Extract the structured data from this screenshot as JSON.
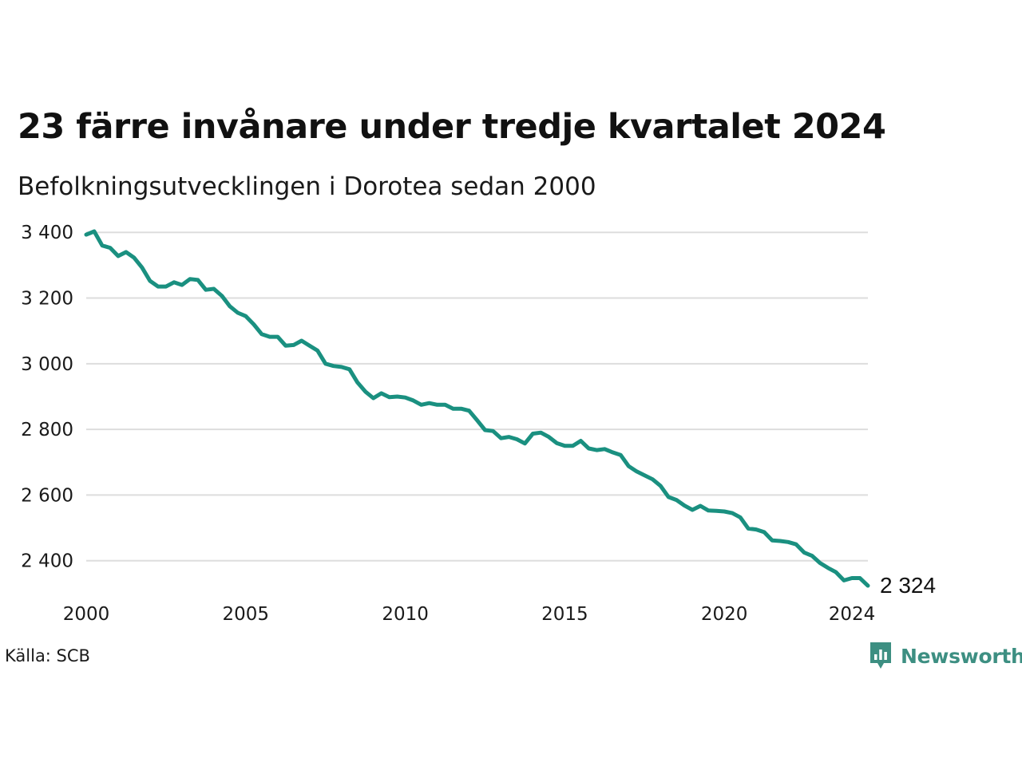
{
  "title": "23 färre invånare under tredje kvartalet 2024",
  "subtitle": "Befolkningsutvecklingen i Dorotea sedan 2000",
  "source": "Källa: SCB",
  "brand": {
    "name": "Newsworthy",
    "icon": "newsworthy-logo-icon",
    "color": "#3d8f82"
  },
  "colors": {
    "line": "#1a9080",
    "grid": "#dddddd"
  },
  "chart_data": {
    "type": "line",
    "title": "23 färre invånare under tredje kvartalet 2024",
    "subtitle": "Befolkningsutvecklingen i Dorotea sedan 2000",
    "xlabel": "",
    "ylabel": "",
    "xlim": [
      2000.0,
      2024.5
    ],
    "ylim": [
      2290,
      3420
    ],
    "grid": "horizontal",
    "legend": "none",
    "x_ticks": [
      2000,
      2005,
      2010,
      2015,
      2020,
      2024
    ],
    "x_tick_labels": [
      "2000",
      "2005",
      "2010",
      "2015",
      "2020",
      "2024"
    ],
    "y_ticks": [
      2400,
      2600,
      2800,
      3000,
      3200,
      3400
    ],
    "y_tick_labels": [
      "2 400",
      "2 600",
      "2 800",
      "3 000",
      "3 200",
      "3 400"
    ],
    "end_label": "2 324",
    "series": [
      {
        "x": [
          2000.0,
          2000.25,
          2000.5,
          2000.75,
          2001.0,
          2001.25,
          2001.5,
          2001.75,
          2002.0,
          2002.25,
          2002.5,
          2002.75,
          2003.0,
          2003.25,
          2003.5,
          2003.75,
          2004.0,
          2004.25,
          2004.5,
          2004.75,
          2005.0,
          2005.25,
          2005.5,
          2005.75,
          2006.0,
          2006.25,
          2006.5,
          2006.75,
          2007.0,
          2007.25,
          2007.5,
          2007.75,
          2008.0,
          2008.25,
          2008.5,
          2008.75,
          2009.0,
          2009.25,
          2009.5,
          2009.75,
          2010.0,
          2010.25,
          2010.5,
          2010.75,
          2011.0,
          2011.25,
          2011.5,
          2011.75,
          2012.0,
          2012.25,
          2012.5,
          2012.75,
          2013.0,
          2013.25,
          2013.5,
          2013.75,
          2014.0,
          2014.25,
          2014.5,
          2014.75,
          2015.0,
          2015.25,
          2015.5,
          2015.75,
          2016.0,
          2016.25,
          2016.5,
          2016.75,
          2017.0,
          2017.25,
          2017.5,
          2017.75,
          2018.0,
          2018.25,
          2018.5,
          2018.75,
          2019.0,
          2019.25,
          2019.5,
          2019.75,
          2020.0,
          2020.25,
          2020.5,
          2020.75,
          2021.0,
          2021.25,
          2021.5,
          2021.75,
          2022.0,
          2022.25,
          2022.5,
          2022.75,
          2023.0,
          2023.25,
          2023.5,
          2023.75,
          2024.0,
          2024.25,
          2024.5
        ],
        "values": [
          3393,
          3403,
          3360,
          3353,
          3328,
          3340,
          3323,
          3293,
          3252,
          3235,
          3235,
          3248,
          3240,
          3258,
          3255,
          3225,
          3228,
          3207,
          3175,
          3155,
          3145,
          3120,
          3090,
          3082,
          3082,
          3055,
          3057,
          3070,
          3055,
          3040,
          3000,
          2993,
          2990,
          2983,
          2943,
          2915,
          2895,
          2910,
          2898,
          2900,
          2897,
          2888,
          2875,
          2880,
          2875,
          2875,
          2863,
          2863,
          2857,
          2828,
          2798,
          2795,
          2773,
          2777,
          2770,
          2757,
          2787,
          2790,
          2777,
          2758,
          2750,
          2750,
          2765,
          2742,
          2737,
          2740,
          2730,
          2722,
          2688,
          2672,
          2660,
          2648,
          2628,
          2594,
          2585,
          2568,
          2555,
          2567,
          2553,
          2552,
          2550,
          2545,
          2532,
          2498,
          2495,
          2487,
          2462,
          2460,
          2457,
          2450,
          2425,
          2415,
          2393,
          2378,
          2365,
          2340,
          2347,
          2347,
          2324
        ]
      }
    ]
  }
}
